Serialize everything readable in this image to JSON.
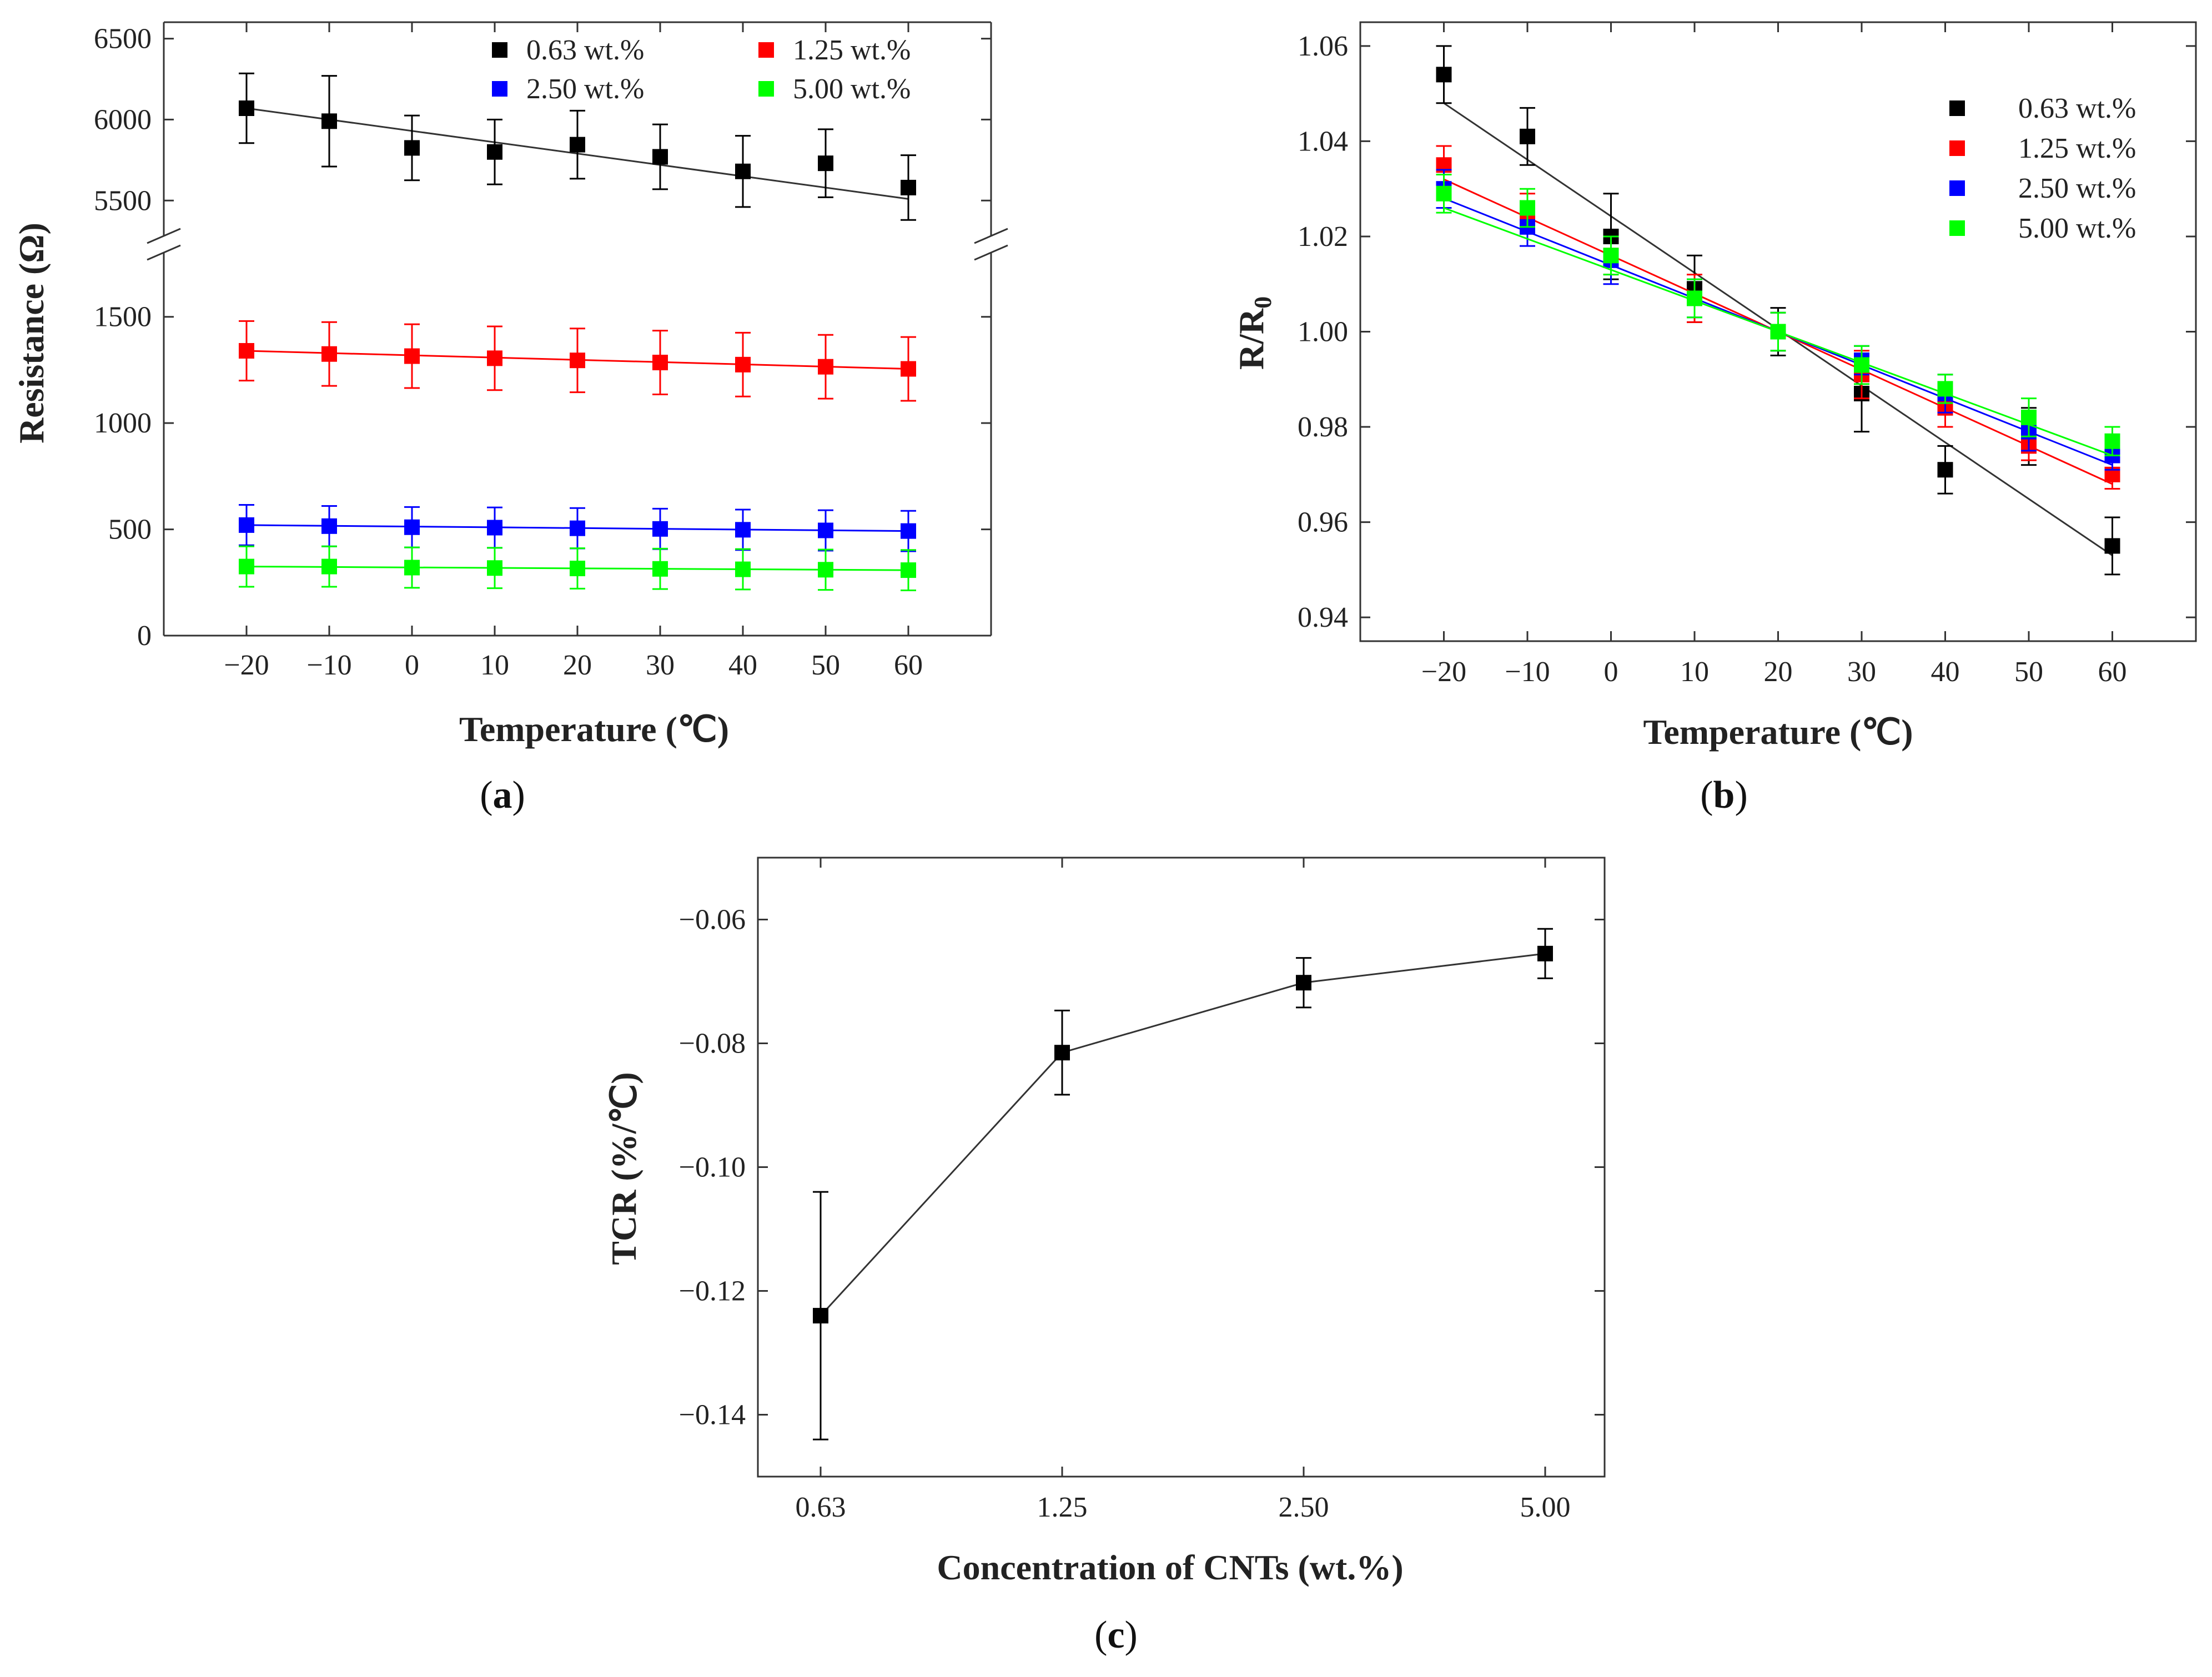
{
  "figure_captions": {
    "a": "a",
    "b": "b",
    "c": "c"
  },
  "colors": {
    "0.63": "#000000",
    "1.25": "#ff0000",
    "2.50": "#0000ff",
    "5.00": "#00ff00",
    "axis": "#333333",
    "fit": "#333333"
  },
  "chart_data": [
    {
      "panel": "a",
      "type": "scatter",
      "title": "",
      "xlabel": "Temperature (℃)",
      "ylabel": "Resistance (Ω)",
      "xlim": [
        -30,
        70
      ],
      "x": [
        -20,
        -10,
        0,
        10,
        20,
        30,
        40,
        50,
        60
      ],
      "xticks": [
        "−20",
        "−10",
        "0",
        "10",
        "20",
        "30",
        "40",
        "50",
        "60"
      ],
      "y_axis_break": {
        "lower_range": [
          0,
          1750
        ],
        "upper_range": [
          5350,
          6550
        ]
      },
      "yticks_lower": [
        {
          "v": 0,
          "t": "0"
        },
        {
          "v": 500,
          "t": "500"
        },
        {
          "v": 1000,
          "t": "1000"
        },
        {
          "v": 1500,
          "t": "1500"
        }
      ],
      "yticks_upper": [
        {
          "v": 5500,
          "t": "5500"
        },
        {
          "v": 6000,
          "t": "6000"
        },
        {
          "v": 6500,
          "t": "6500"
        }
      ],
      "legend": [
        "0.63 wt.%",
        "1.25 wt.%",
        "2.50 wt.%",
        "5.00 wt.%"
      ],
      "legend_position": "top-right",
      "series": [
        {
          "name": "0.63 wt.%",
          "color": "#000000",
          "values": [
            6070,
            5990,
            5825,
            5800,
            5845,
            5770,
            5680,
            5730,
            5580
          ],
          "errors": [
            215,
            280,
            200,
            200,
            210,
            200,
            220,
            210,
            200
          ],
          "fit": [
            6070,
            5510
          ]
        },
        {
          "name": "1.25 wt.%",
          "color": "#ff0000",
          "values": [
            1340,
            1325,
            1315,
            1305,
            1295,
            1285,
            1275,
            1265,
            1255
          ],
          "errors": [
            140,
            150,
            150,
            150,
            150,
            150,
            150,
            150,
            150
          ],
          "fit": [
            1340,
            1255
          ]
        },
        {
          "name": "2.50 wt.%",
          "color": "#0000ff",
          "values": [
            520,
            515,
            510,
            508,
            505,
            502,
            498,
            495,
            492
          ],
          "errors": [
            95,
            95,
            95,
            95,
            95,
            95,
            95,
            95,
            95
          ],
          "fit": [
            520,
            492
          ]
        },
        {
          "name": "5.00 wt.%",
          "color": "#00ff00",
          "values": [
            325,
            325,
            320,
            318,
            316,
            314,
            312,
            310,
            308
          ],
          "errors": [
            95,
            95,
            95,
            95,
            95,
            95,
            95,
            95,
            95
          ],
          "fit": [
            325,
            308
          ]
        }
      ]
    },
    {
      "panel": "b",
      "type": "scatter",
      "title": "",
      "xlabel": "Temperature (℃)",
      "ylabel": "R/R",
      "ylabel_subscript": "0",
      "xlim": [
        -30,
        70
      ],
      "ylim": [
        0.935,
        1.065
      ],
      "x": [
        -20,
        -10,
        0,
        10,
        20,
        30,
        40,
        50,
        60
      ],
      "xticks": [
        "−20",
        "−10",
        "0",
        "10",
        "20",
        "30",
        "40",
        "50",
        "60"
      ],
      "yticks": [
        {
          "v": 0.94,
          "t": "0.94"
        },
        {
          "v": 0.96,
          "t": "0.96"
        },
        {
          "v": 0.98,
          "t": "0.98"
        },
        {
          "v": 1.0,
          "t": "1.00"
        },
        {
          "v": 1.02,
          "t": "1.02"
        },
        {
          "v": 1.04,
          "t": "1.04"
        },
        {
          "v": 1.06,
          "t": "1.06"
        }
      ],
      "legend": [
        "0.63 wt.%",
        "1.25 wt.%",
        "2.50 wt.%",
        "5.00 wt.%"
      ],
      "legend_position": "top-right",
      "series": [
        {
          "name": "0.63 wt.%",
          "color": "#000000",
          "values": [
            1.054,
            1.041,
            1.02,
            1.009,
            1.0,
            0.987,
            0.971,
            0.978,
            0.955
          ],
          "errors": [
            0.006,
            0.006,
            0.009,
            0.007,
            0.005,
            0.008,
            0.005,
            0.006,
            0.006
          ],
          "fit": [
            1.048,
            0.953
          ]
        },
        {
          "name": "1.25 wt.%",
          "color": "#ff0000",
          "values": [
            1.035,
            1.025,
            1.016,
            1.007,
            1.0,
            0.991,
            0.984,
            0.976,
            0.97
          ],
          "errors": [
            0.004,
            0.004,
            0.004,
            0.005,
            0.004,
            0.005,
            0.004,
            0.003,
            0.003
          ],
          "fit": [
            1.032,
            0.968
          ]
        },
        {
          "name": "2.50 wt.%",
          "color": "#0000ff",
          "values": [
            1.03,
            1.022,
            1.015,
            1.007,
            1.0,
            0.994,
            0.987,
            0.979,
            0.974
          ],
          "errors": [
            0.004,
            0.004,
            0.005,
            0.004,
            0.004,
            0.003,
            0.004,
            0.004,
            0.003
          ],
          "fit": [
            1.028,
            0.972
          ]
        },
        {
          "name": "5.00 wt.%",
          "color": "#00ff00",
          "values": [
            1.029,
            1.026,
            1.016,
            1.007,
            1.0,
            0.993,
            0.988,
            0.982,
            0.977
          ],
          "errors": [
            0.004,
            0.004,
            0.004,
            0.004,
            0.004,
            0.004,
            0.003,
            0.004,
            0.003
          ],
          "fit": [
            1.026,
            0.974
          ]
        }
      ]
    },
    {
      "panel": "c",
      "type": "line",
      "title": "",
      "xlabel": "Concentration of CNTs (wt.%)",
      "ylabel": "TCR (%/℃)",
      "categories": [
        "0.63",
        "1.25",
        "2.50",
        "5.00"
      ],
      "ylim": [
        -0.15,
        -0.05
      ],
      "yticks": [
        {
          "v": -0.06,
          "t": "−0.06"
        },
        {
          "v": -0.08,
          "t": "−0.08"
        },
        {
          "v": -0.1,
          "t": "−0.10"
        },
        {
          "v": -0.12,
          "t": "−0.12"
        },
        {
          "v": -0.14,
          "t": "−0.14"
        }
      ],
      "series": [
        {
          "name": "TCR",
          "color": "#000000",
          "values": [
            -0.124,
            -0.0815,
            -0.0702,
            -0.0655
          ],
          "errors": [
            0.02,
            0.0068,
            0.004,
            0.004
          ]
        }
      ]
    }
  ]
}
